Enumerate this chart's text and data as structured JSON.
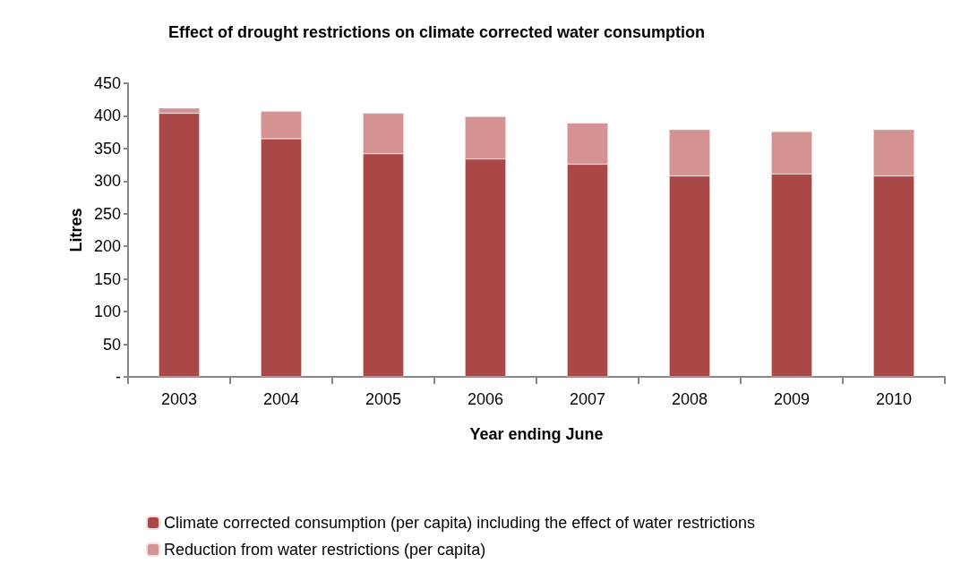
{
  "chart_data": {
    "type": "bar",
    "title": "Effect of drought restrictions on climate corrected water consumption",
    "xlabel": "Year ending June",
    "ylabel": "Litres",
    "categories": [
      "2003",
      "2004",
      "2005",
      "2006",
      "2007",
      "2008",
      "2009",
      "2010"
    ],
    "stacked": true,
    "series": [
      {
        "name": "Climate corrected consumption (per capita) including the effect of water restrictions",
        "color": "#a94846",
        "values": [
          404,
          365,
          342,
          334,
          326,
          308,
          311,
          308
        ]
      },
      {
        "name": "Reduction from water restrictions (per capita)",
        "color": "#d39392",
        "values": [
          8,
          42,
          62,
          65,
          63,
          71,
          65,
          71
        ]
      }
    ],
    "ylim": [
      0,
      450
    ],
    "yticks": [
      {
        "value": 0,
        "label": "-"
      },
      50,
      100,
      150,
      200,
      250,
      300,
      350,
      400,
      450
    ],
    "grid": false,
    "legend": "bottom"
  }
}
